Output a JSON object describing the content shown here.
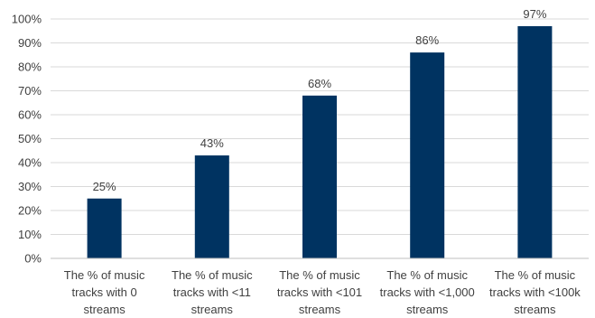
{
  "chart_data": {
    "type": "bar",
    "title": "",
    "xlabel": "",
    "ylabel": "",
    "ylim": [
      0,
      100
    ],
    "yticks": [
      "0%",
      "10%",
      "20%",
      "30%",
      "40%",
      "50%",
      "60%",
      "70%",
      "80%",
      "90%",
      "100%"
    ],
    "grid": true,
    "bar_color": "#003361",
    "categories": [
      [
        "The % of music",
        "tracks with 0",
        "streams"
      ],
      [
        "The % of music",
        "tracks with <11",
        "streams"
      ],
      [
        "The % of music",
        "tracks with <101",
        "streams"
      ],
      [
        "The % of music",
        "tracks with <1,000",
        "streams"
      ],
      [
        "The % of music",
        "tracks with <100k",
        "streams"
      ]
    ],
    "values": [
      25,
      43,
      68,
      86,
      97
    ],
    "value_labels": [
      "25%",
      "43%",
      "68%",
      "86%",
      "97%"
    ]
  }
}
